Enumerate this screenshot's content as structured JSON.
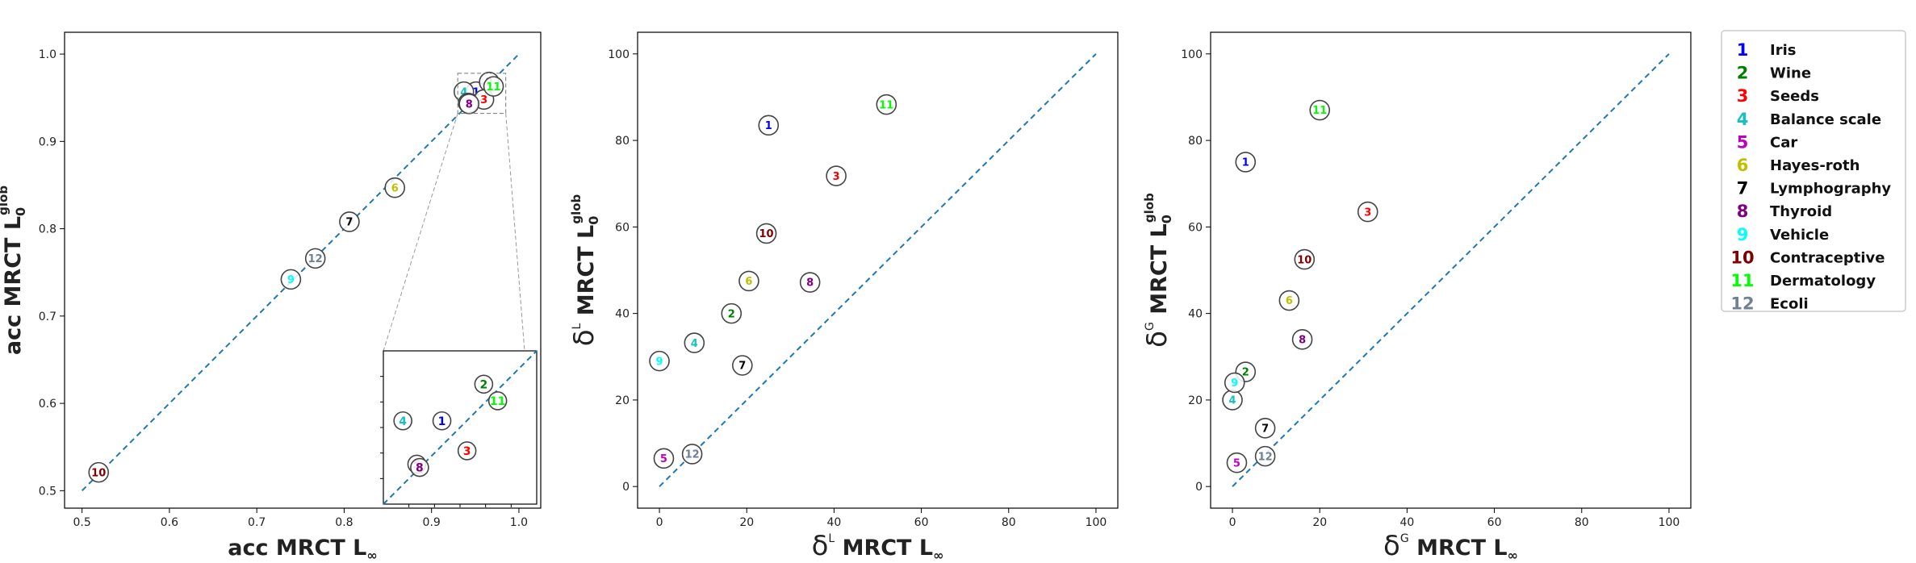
{
  "legend": {
    "placement": "right-outside",
    "entries": [
      {
        "id": "1",
        "name": "Iris",
        "color": "#0000ff"
      },
      {
        "id": "2",
        "name": "Wine",
        "color": "#008000"
      },
      {
        "id": "3",
        "name": "Seeds",
        "color": "#ff0000"
      },
      {
        "id": "4",
        "name": "Balance scale",
        "color": "#17bfbf"
      },
      {
        "id": "5",
        "name": "Car",
        "color": "#bf00bf"
      },
      {
        "id": "6",
        "name": "Hayes-roth",
        "color": "#bfbf00"
      },
      {
        "id": "7",
        "name": "Lymphography",
        "color": "#000000"
      },
      {
        "id": "8",
        "name": "Thyroid",
        "color": "#800080"
      },
      {
        "id": "9",
        "name": "Vehicle",
        "color": "#00ffff"
      },
      {
        "id": "10",
        "name": "Contraceptive",
        "color": "#800000"
      },
      {
        "id": "11",
        "name": "Dermatology",
        "color": "#00ff00"
      },
      {
        "id": "12",
        "name": "Ecoli",
        "color": "#708090"
      }
    ]
  },
  "chart_data": [
    {
      "type": "scatter",
      "xlabel": "acc MRCT L",
      "xlabel_sub": "∞",
      "ylabel": "acc MRCT L",
      "ylabel_sub": "0",
      "ylabel_sup": "glob",
      "xlim": [
        0.48,
        1.025
      ],
      "ylim": [
        0.48,
        1.025
      ],
      "xticks": [
        "0.5",
        "0.6",
        "0.7",
        "0.8",
        "0.9",
        "1.0"
      ],
      "yticks": [
        "0.5",
        "0.6",
        "0.7",
        "0.8",
        "0.9",
        "1.0"
      ],
      "reference_line": "y = x",
      "inset": {
        "zoom_region": {
          "x": [
            0.93,
            0.985
          ],
          "y": [
            0.932,
            0.978
          ]
        }
      },
      "points": [
        {
          "id": "1",
          "x": 0.951,
          "y": 0.957
        },
        {
          "id": "2",
          "x": 0.966,
          "y": 0.968
        },
        {
          "id": "3",
          "x": 0.96,
          "y": 0.948
        },
        {
          "id": "4",
          "x": 0.937,
          "y": 0.957
        },
        {
          "id": "5",
          "x": 0.942,
          "y": 0.944
        },
        {
          "id": "6",
          "x": 0.858,
          "y": 0.847
        },
        {
          "id": "7",
          "x": 0.806,
          "y": 0.808
        },
        {
          "id": "8",
          "x": 0.943,
          "y": 0.943
        },
        {
          "id": "9",
          "x": 0.739,
          "y": 0.742
        },
        {
          "id": "10",
          "x": 0.519,
          "y": 0.521
        },
        {
          "id": "11",
          "x": 0.971,
          "y": 0.963
        },
        {
          "id": "12",
          "x": 0.767,
          "y": 0.766
        }
      ]
    },
    {
      "type": "scatter",
      "xlabel": "δ",
      "xlabel_sup": "L",
      "xlabel_rest": "MRCT L",
      "xlabel_sub": "∞",
      "ylabel": "δ",
      "ylabel_sup": "L",
      "ylabel_rest": "MRCT L",
      "ylabel_sub": "0",
      "ylabel_sup2": "glob",
      "xlim": [
        -5,
        105
      ],
      "ylim": [
        -5,
        105
      ],
      "xticks": [
        "0",
        "20",
        "40",
        "60",
        "80",
        "100"
      ],
      "yticks": [
        "0",
        "20",
        "40",
        "60",
        "80",
        "100"
      ],
      "reference_line": "y = x",
      "points": [
        {
          "id": "1",
          "x": 25.0,
          "y": 83.5
        },
        {
          "id": "2",
          "x": 16.5,
          "y": 40.0
        },
        {
          "id": "3",
          "x": 40.5,
          "y": 71.8
        },
        {
          "id": "4",
          "x": 8.0,
          "y": 33.2
        },
        {
          "id": "5",
          "x": 1.0,
          "y": 6.5
        },
        {
          "id": "6",
          "x": 20.5,
          "y": 47.5
        },
        {
          "id": "7",
          "x": 19.0,
          "y": 28.0
        },
        {
          "id": "8",
          "x": 34.5,
          "y": 47.2
        },
        {
          "id": "9",
          "x": 0.0,
          "y": 29.0
        },
        {
          "id": "10",
          "x": 24.5,
          "y": 58.5
        },
        {
          "id": "11",
          "x": 52.0,
          "y": 88.3
        },
        {
          "id": "12",
          "x": 7.5,
          "y": 7.5
        }
      ]
    },
    {
      "type": "scatter",
      "xlabel": "δ",
      "xlabel_sup": "G",
      "xlabel_rest": "MRCT L",
      "xlabel_sub": "∞",
      "ylabel": "δ",
      "ylabel_sup": "G",
      "ylabel_rest": "MRCT L",
      "ylabel_sub": "0",
      "ylabel_sup2": "glob",
      "xlim": [
        -5,
        105
      ],
      "ylim": [
        -5,
        105
      ],
      "xticks": [
        "0",
        "20",
        "40",
        "60",
        "80",
        "100"
      ],
      "yticks": [
        "0",
        "20",
        "40",
        "60",
        "80",
        "100"
      ],
      "reference_line": "y = x",
      "points": [
        {
          "id": "1",
          "x": 3.0,
          "y": 75.0
        },
        {
          "id": "2",
          "x": 3.0,
          "y": 26.5
        },
        {
          "id": "3",
          "x": 31.0,
          "y": 63.5
        },
        {
          "id": "4",
          "x": 0.0,
          "y": 20.0
        },
        {
          "id": "5",
          "x": 1.0,
          "y": 5.5
        },
        {
          "id": "6",
          "x": 13.0,
          "y": 43.0
        },
        {
          "id": "7",
          "x": 7.5,
          "y": 13.5
        },
        {
          "id": "8",
          "x": 16.0,
          "y": 34.0
        },
        {
          "id": "9",
          "x": 0.5,
          "y": 24.0
        },
        {
          "id": "10",
          "x": 16.5,
          "y": 52.5
        },
        {
          "id": "11",
          "x": 20.0,
          "y": 87.0
        },
        {
          "id": "12",
          "x": 7.5,
          "y": 7.0
        }
      ]
    }
  ]
}
